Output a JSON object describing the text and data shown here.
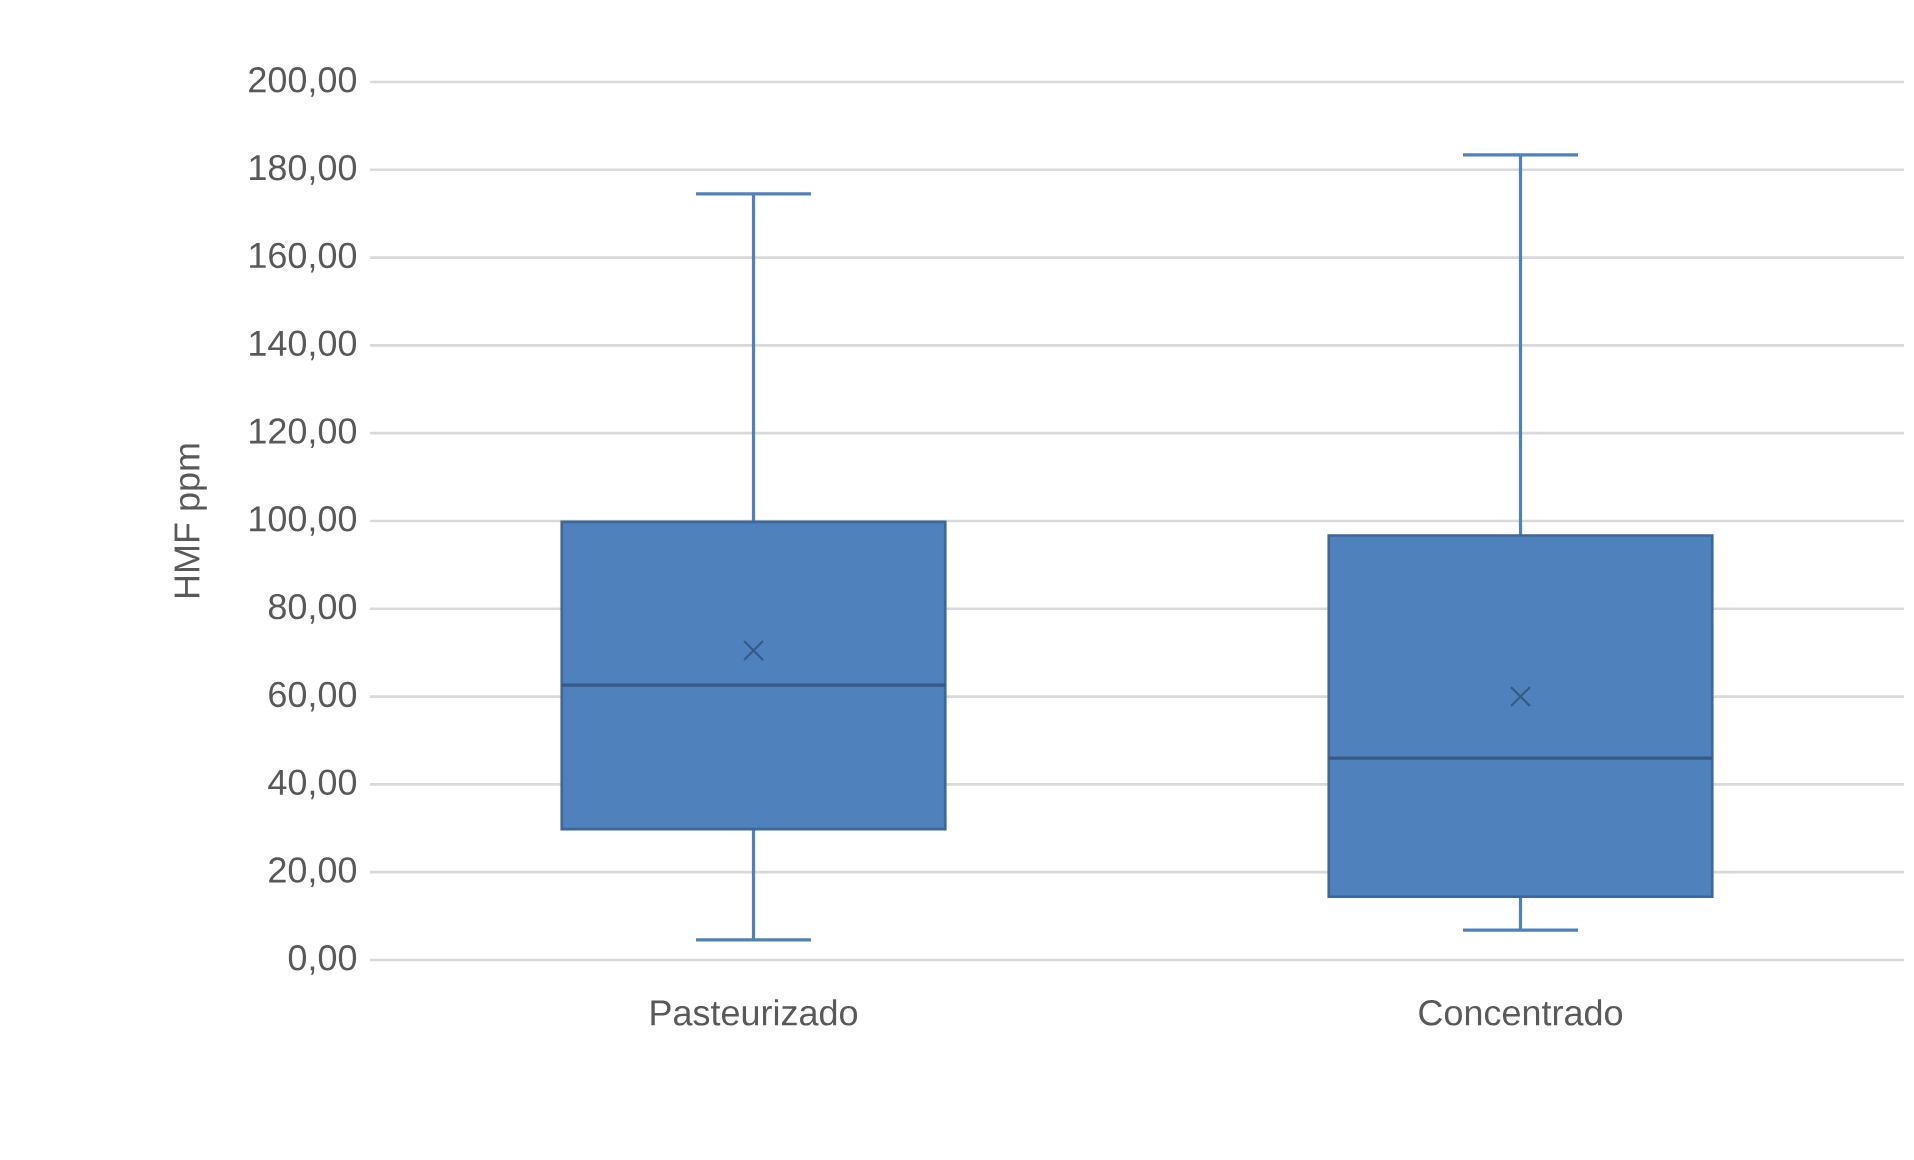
{
  "chart_data": {
    "type": "box",
    "ylabel": "HMF ppm",
    "categories": [
      "Pasteurizado",
      "Concentrado"
    ],
    "boxes": [
      {
        "low": 4.6,
        "q1": 29.8,
        "median": 62.6,
        "q3": 99.8,
        "high": 174.5,
        "mean": 70.5
      },
      {
        "low": 6.8,
        "q1": 14.4,
        "median": 46.0,
        "q3": 96.7,
        "high": 183.4,
        "mean": 60.0
      }
    ],
    "color": "#4f81bd",
    "marker": "cross",
    "grid": "y",
    "ylim": [
      0,
      200
    ],
    "yticks": [
      {
        "value": 0,
        "label": "0,00"
      },
      {
        "value": 20,
        "label": "20,00"
      },
      {
        "value": 40,
        "label": "40,00"
      },
      {
        "value": 60,
        "label": "60,00"
      },
      {
        "value": 80,
        "label": "80,00"
      },
      {
        "value": 100,
        "label": "100,00"
      },
      {
        "value": 120,
        "label": "120,00"
      },
      {
        "value": 140,
        "label": "140,00"
      },
      {
        "value": 160,
        "label": "160,00"
      },
      {
        "value": 180,
        "label": "180,00"
      },
      {
        "value": 200,
        "label": "200,00"
      }
    ]
  }
}
